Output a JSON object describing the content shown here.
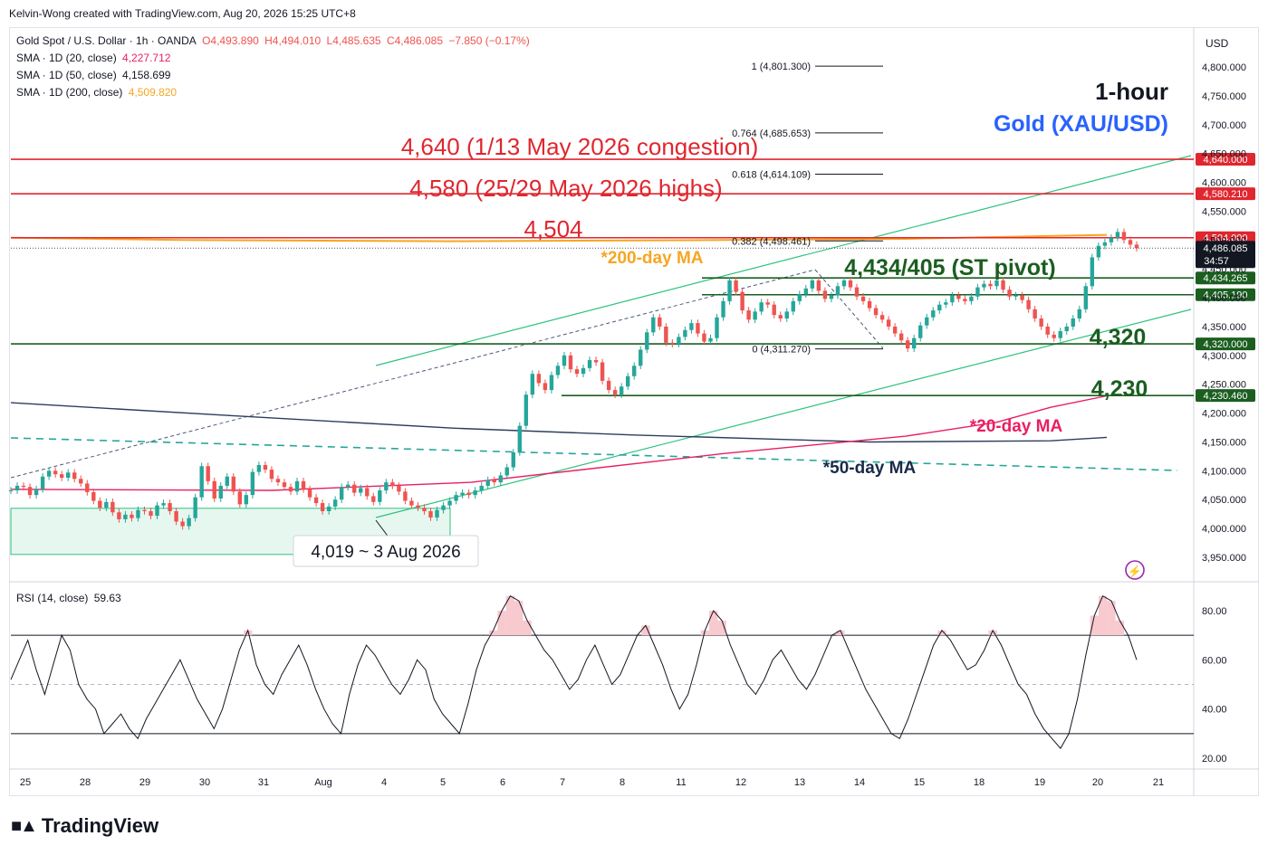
{
  "header": {
    "credit": "Kelvin-Wong created with TradingView.com, Aug 20, 2026 15:25 UTC+8"
  },
  "legend": {
    "symbol": "Gold Spot / U.S. Dollar · 1h · OANDA",
    "open": "O4,493.890",
    "high": "H4,494.010",
    "low": "L4,485.635",
    "close": "C4,486.085",
    "change": "−7.850 (−0.17%)",
    "sma20_label": "SMA · 1D (20, close)",
    "sma20_value": "4,227.712",
    "sma50_label": "SMA · 1D (50, close)",
    "sma50_value": "4,158.699",
    "sma200_label": "SMA · 1D (200, close)",
    "sma200_value": "4,509.820",
    "rsi_label": "RSI (14, close)",
    "rsi_value": "59.63"
  },
  "currency": "USD",
  "brand": "TradingView",
  "colors": {
    "up": "#26a69a",
    "down": "#ef5350",
    "resistance": "#e0262f",
    "support": "#1b5e20",
    "sma20": "#e91e63",
    "sma50": "#131722",
    "sma200": "#f5a623",
    "channel": "#2ec27e",
    "title_blue": "#2962ff",
    "rsi": "#131722"
  },
  "chart_data": {
    "type": "candlestick",
    "timeframe": "1-hour",
    "title": "1-hour",
    "subtitle": "Gold (XAU/USD)",
    "x_tick_labels": [
      "25",
      "28",
      "29",
      "30",
      "31",
      "Aug",
      "4",
      "5",
      "6",
      "7",
      "8",
      "11",
      "12",
      "13",
      "14",
      "15",
      "18",
      "19",
      "20",
      "21"
    ],
    "y_ticks": [
      3950,
      4000,
      4050,
      4100,
      4150,
      4200,
      4250,
      4300,
      4350,
      4400,
      4450,
      4500,
      4550,
      4600,
      4650,
      4700,
      4750,
      4800
    ],
    "ylim": [
      3925,
      4830
    ],
    "current_price": {
      "value": "4,486.085",
      "countdown": "34:57"
    },
    "horizontal_levels": [
      {
        "value": 4640.0,
        "axis_label": "4,640.000",
        "annotation": "4,640 (1/13 May 2026 congestion)",
        "kind": "resistance"
      },
      {
        "value": 4580.21,
        "axis_label": "4,580.210",
        "annotation": "4,580 (25/29 May 2026 highs)",
        "kind": "resistance"
      },
      {
        "value": 4504.0,
        "axis_label": "4,504.000",
        "annotation": "4,504",
        "kind": "resistance"
      },
      {
        "value": 4434.265,
        "axis_label": "4,434.265",
        "annotation": "4,434/405 (ST pivot)",
        "kind": "support"
      },
      {
        "value": 4405.19,
        "axis_label": "4,405.190",
        "annotation": "",
        "kind": "support"
      },
      {
        "value": 4320.0,
        "axis_label": "4,320.000",
        "annotation": "4,320",
        "kind": "support"
      },
      {
        "value": 4230.46,
        "axis_label": "4,230.460",
        "annotation": "4,230",
        "kind": "support"
      }
    ],
    "fibonacci": [
      {
        "ratio": "1",
        "price": "4,801.300",
        "value": 4801.3
      },
      {
        "ratio": "0.764",
        "price": "4,685.653",
        "value": 4685.653
      },
      {
        "ratio": "0.618",
        "price": "4,614.109",
        "value": 4614.109
      },
      {
        "ratio": "0.382",
        "price": "4,498.461",
        "value": 4498.461
      },
      {
        "ratio": "0",
        "price": "4,311.270",
        "value": 4311.27
      }
    ],
    "annotations": {
      "ma200": "*200-day MA",
      "ma20": "*20-day MA",
      "ma50": "*50-day MA",
      "low_callout": "4,019 ~ 3 Aug 2026"
    },
    "closes": [
      4066,
      4074,
      4072,
      4058,
      4068,
      4090,
      4100,
      4094,
      4088,
      4097,
      4086,
      4078,
      4063,
      4048,
      4036,
      4046,
      4028,
      4016,
      4024,
      4018,
      4032,
      4030,
      4022,
      4040,
      4044,
      4030,
      4012,
      4004,
      4018,
      4054,
      4108,
      4082,
      4052,
      4074,
      4090,
      4064,
      4042,
      4058,
      4098,
      4110,
      4102,
      4086,
      4080,
      4072,
      4064,
      4082,
      4068,
      4054,
      4044,
      4030,
      4038,
      4050,
      4072,
      4076,
      4062,
      4070,
      4056,
      4046,
      4066,
      4080,
      4074,
      4064,
      4048,
      4040,
      4036,
      4030,
      4019,
      4032,
      4040,
      4048,
      4058,
      4062,
      4058,
      4066,
      4074,
      4084,
      4080,
      4092,
      4106,
      4132,
      4178,
      4232,
      4268,
      4252,
      4240,
      4266,
      4282,
      4300,
      4276,
      4268,
      4278,
      4292,
      4288,
      4256,
      4240,
      4232,
      4246,
      4264,
      4282,
      4310,
      4340,
      4366,
      4350,
      4322,
      4320,
      4332,
      4344,
      4356,
      4338,
      4324,
      4330,
      4366,
      4394,
      4430,
      4410,
      4378,
      4362,
      4376,
      4392,
      4388,
      4370,
      4364,
      4376,
      4394,
      4406,
      4416,
      4430,
      4412,
      4398,
      4404,
      4420,
      4430,
      4418,
      4402,
      4394,
      4382,
      4370,
      4362,
      4350,
      4338,
      4326,
      4312,
      4330,
      4352,
      4366,
      4378,
      4388,
      4392,
      4404,
      4398,
      4394,
      4402,
      4418,
      4424,
      4420,
      4430,
      4414,
      4402,
      4404,
      4396,
      4380,
      4364,
      4350,
      4336,
      4330,
      4342,
      4350,
      4364,
      4380,
      4420,
      4470,
      4490,
      4496,
      4504,
      4514,
      4500,
      4492,
      4486
    ],
    "x_of_closes": [
      12,
      1255
    ],
    "sma20": [
      [
        12,
        4068
      ],
      [
        300,
        4066
      ],
      [
        520,
        4080
      ],
      [
        800,
        4130
      ],
      [
        1000,
        4160
      ],
      [
        1100,
        4184
      ],
      [
        1160,
        4210
      ],
      [
        1222,
        4230
      ]
    ],
    "sma50": [
      [
        12,
        4218
      ],
      [
        250,
        4196
      ],
      [
        500,
        4174
      ],
      [
        700,
        4162
      ],
      [
        960,
        4150
      ],
      [
        1160,
        4152
      ],
      [
        1222,
        4158
      ]
    ],
    "sma200": [
      [
        12,
        4504
      ],
      [
        200,
        4500
      ],
      [
        500,
        4498
      ],
      [
        800,
        4500
      ],
      [
        1000,
        4502
      ],
      [
        1222,
        4509
      ]
    ],
    "rsi_ylim": [
      15,
      90
    ],
    "rsi_ticks": [
      20,
      40,
      60,
      80
    ],
    "rsi_levels": [
      30,
      50,
      70
    ],
    "rsi_values": [
      52,
      60,
      68,
      56,
      46,
      58,
      70,
      64,
      50,
      44,
      40,
      30,
      34,
      38,
      32,
      28,
      36,
      42,
      48,
      54,
      60,
      52,
      44,
      38,
      32,
      40,
      52,
      64,
      72,
      58,
      50,
      46,
      54,
      60,
      66,
      58,
      48,
      40,
      34,
      30,
      46,
      58,
      66,
      62,
      56,
      50,
      46,
      52,
      60,
      56,
      44,
      38,
      34,
      30,
      42,
      56,
      66,
      72,
      80,
      86,
      84,
      76,
      70,
      64,
      60,
      54,
      48,
      52,
      60,
      66,
      58,
      50,
      54,
      62,
      70,
      74,
      66,
      58,
      48,
      40,
      46,
      58,
      72,
      80,
      76,
      66,
      58,
      50,
      46,
      52,
      60,
      64,
      58,
      52,
      48,
      54,
      62,
      70,
      72,
      64,
      56,
      48,
      42,
      36,
      30,
      28,
      36,
      46,
      56,
      66,
      72,
      68,
      62,
      56,
      58,
      64,
      72,
      66,
      58,
      50,
      46,
      38,
      32,
      28,
      24,
      30,
      44,
      62,
      78,
      86,
      84,
      76,
      70,
      60
    ]
  }
}
